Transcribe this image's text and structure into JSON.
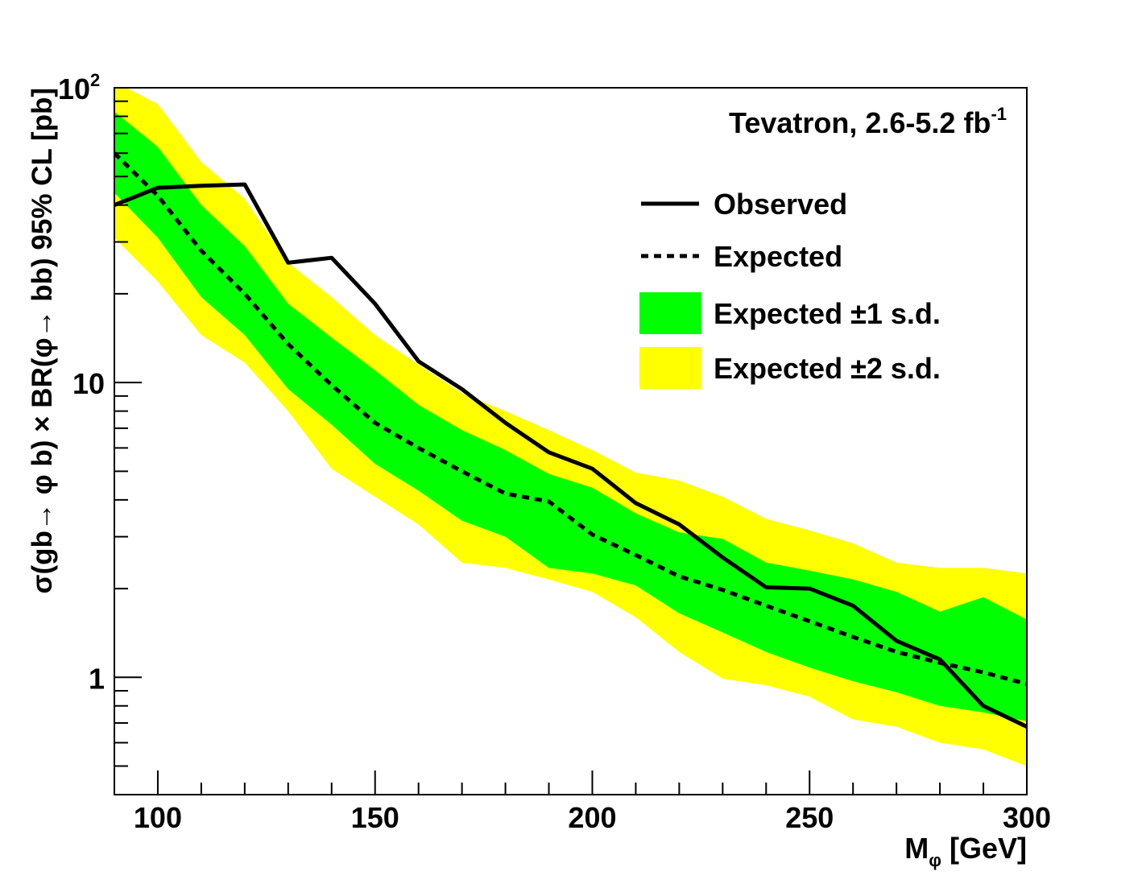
{
  "chart_data": {
    "type": "line",
    "title": "",
    "annotation": {
      "text": "Tevatron, 2.6-5.2 fb",
      "superscript": "-1"
    },
    "xlabel": {
      "main": "M",
      "subscript": "φ",
      "unit": " [GeV]"
    },
    "ylabel": "σ(gb→ φ b) × BR(φ→ bb) 95% CL [pb]",
    "xlim": [
      90,
      300
    ],
    "ylim": [
      0.4,
      100
    ],
    "yscale": "log",
    "x_ticks": [
      100,
      150,
      200,
      250,
      300
    ],
    "x_tick_labels": [
      "100",
      "150",
      "200",
      "250",
      "300"
    ],
    "y_ticks": [
      1,
      10,
      100
    ],
    "y_tick_labels": [
      {
        "base": "1",
        "exp": ""
      },
      {
        "base": "10",
        "exp": ""
      },
      {
        "base": "10",
        "exp": "2"
      }
    ],
    "x": [
      90,
      100,
      110,
      120,
      130,
      140,
      150,
      160,
      170,
      180,
      190,
      200,
      210,
      220,
      230,
      240,
      250,
      260,
      270,
      280,
      290,
      300
    ],
    "series": [
      {
        "name": "Observed",
        "style": "solid",
        "values": [
          40,
          45.8,
          46.5,
          47,
          25.5,
          26.5,
          18.5,
          11.8,
          9.5,
          7.3,
          5.8,
          5.1,
          3.9,
          3.3,
          2.55,
          2.02,
          2.0,
          1.75,
          1.33,
          1.15,
          0.8,
          0.68
        ]
      },
      {
        "name": "Expected",
        "style": "dotted",
        "values": [
          60,
          43,
          28,
          20,
          13.5,
          9.8,
          7.3,
          6.0,
          5.0,
          4.2,
          3.95,
          3.05,
          2.6,
          2.2,
          1.98,
          1.75,
          1.55,
          1.37,
          1.22,
          1.12,
          1.04,
          0.95
        ]
      }
    ],
    "bands": [
      {
        "name": "Expected ±1 s.d.",
        "color": "#00ff00",
        "lower": [
          44,
          31,
          19.5,
          14.5,
          9.5,
          7.2,
          5.3,
          4.3,
          3.4,
          3.0,
          2.35,
          2.25,
          2.05,
          1.65,
          1.42,
          1.22,
          1.08,
          0.97,
          0.89,
          0.8,
          0.76,
          0.71
        ],
        "upper": [
          83,
          63,
          40,
          29,
          18.5,
          14.2,
          11,
          8.4,
          6.9,
          5.9,
          4.9,
          4.4,
          3.6,
          3.1,
          2.95,
          2.45,
          2.3,
          2.15,
          1.95,
          1.67,
          1.87,
          1.57
        ]
      },
      {
        "name": "Expected ±2 s.d.",
        "color": "#ffff00",
        "lower": [
          31,
          22,
          14.5,
          11.7,
          8.0,
          5.1,
          4.1,
          3.3,
          2.45,
          2.35,
          2.15,
          1.95,
          1.6,
          1.22,
          0.99,
          0.94,
          0.86,
          0.72,
          0.68,
          0.6,
          0.57,
          0.5
        ],
        "upper": [
          105,
          88,
          56,
          42,
          25.5,
          19.5,
          14.5,
          11.5,
          9.2,
          8.0,
          6.9,
          5.9,
          4.95,
          4.65,
          4.1,
          3.45,
          3.15,
          2.85,
          2.45,
          2.35,
          2.35,
          2.25
        ]
      }
    ],
    "legend": {
      "placement": "top-right",
      "entries": [
        {
          "label": "Observed",
          "kind": "solid"
        },
        {
          "label": "Expected",
          "kind": "dotted"
        },
        {
          "label": "Expected ±1 s.d.",
          "kind": "fill",
          "color": "#00ff00"
        },
        {
          "label": "Expected ±2 s.d.",
          "kind": "fill",
          "color": "#ffff00"
        }
      ]
    }
  }
}
